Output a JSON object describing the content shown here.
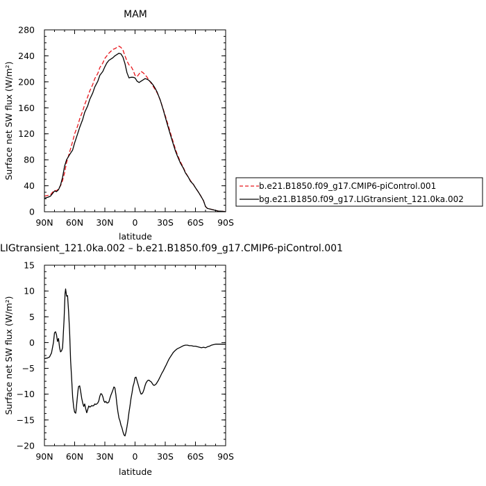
{
  "chart_data": [
    {
      "type": "line",
      "title": "MAM",
      "xlabel": "latitude",
      "ylabel": "Surface net SW flux (W/m²)",
      "x_axis": "latitude, 90N (left) to 90S (right); N positive, S negative",
      "xlim": [
        90,
        -90
      ],
      "xticks": [
        90,
        60,
        30,
        0,
        -30,
        -60,
        -90
      ],
      "xtick_labels": [
        "90N",
        "60N",
        "30N",
        "0",
        "30S",
        "60S",
        "90S"
      ],
      "ylim": [
        0,
        280
      ],
      "yticks": [
        0,
        40,
        80,
        120,
        160,
        200,
        240,
        280
      ],
      "ytick_labels": [
        "0",
        "40",
        "80",
        "120",
        "160",
        "200",
        "240",
        "280"
      ],
      "grid": false,
      "legend": "right, outside",
      "series": [
        {
          "name": "b.e21.B1850.f09_g17.CMIP6-piControl.001",
          "color": "#e8141a",
          "dash": "dashed",
          "x": [
            90,
            87,
            84,
            82,
            80,
            78,
            76,
            74,
            72,
            70,
            68,
            65,
            62,
            60,
            57,
            55,
            52,
            50,
            47,
            45,
            42,
            40,
            37,
            35,
            32,
            30,
            28,
            26,
            24,
            22,
            20,
            18,
            16,
            14,
            12,
            10,
            8,
            6,
            4,
            2,
            0,
            -2,
            -4,
            -6,
            -8,
            -10,
            -12,
            -14,
            -16,
            -18,
            -20,
            -22,
            -25,
            -28,
            -30,
            -32,
            -35,
            -38,
            -40,
            -42,
            -45,
            -48,
            -50,
            -53,
            -55,
            -58,
            -60,
            -63,
            -65,
            -68,
            -70,
            -72,
            -75,
            -78,
            -80,
            -83,
            -85,
            -88,
            -90
          ],
          "y": [
            24,
            25,
            26,
            30,
            33,
            32,
            36,
            40,
            48,
            60,
            76,
            92,
            108,
            120,
            132,
            143,
            155,
            165,
            177,
            186,
            196,
            205,
            213,
            222,
            229,
            236,
            240,
            244,
            247,
            250,
            251,
            253,
            255,
            253,
            249,
            240,
            232,
            226,
            224,
            218,
            210,
            208,
            212,
            216,
            214,
            211,
            207,
            202,
            198,
            193,
            188,
            183,
            172,
            158,
            148,
            138,
            122,
            107,
            97,
            88,
            77,
            68,
            61,
            53,
            48,
            42,
            37,
            30,
            25,
            17,
            8,
            5,
            4,
            3,
            2,
            1,
            1,
            0.5,
            0
          ]
        },
        {
          "name": "bg.e21.B1850.f09_g17.LIGtransient_121.0ka.002",
          "color": "#000000",
          "dash": "solid",
          "x": [
            90,
            87,
            84,
            82,
            80,
            78,
            76,
            74,
            72,
            70,
            68,
            65,
            62,
            60,
            57,
            55,
            52,
            50,
            47,
            45,
            42,
            40,
            37,
            35,
            32,
            30,
            28,
            26,
            24,
            22,
            20,
            18,
            16,
            14,
            12,
            10,
            8,
            6,
            4,
            2,
            0,
            -2,
            -4,
            -6,
            -8,
            -10,
            -12,
            -14,
            -16,
            -18,
            -20,
            -22,
            -25,
            -28,
            -30,
            -32,
            -35,
            -38,
            -40,
            -42,
            -45,
            -48,
            -50,
            -53,
            -55,
            -58,
            -60,
            -63,
            -65,
            -68,
            -70,
            -72,
            -75,
            -78,
            -80,
            -83,
            -85,
            -88,
            -90
          ],
          "y": [
            21,
            22,
            24,
            28,
            32,
            31,
            34,
            41,
            53,
            70,
            80,
            88,
            95,
            106,
            120,
            130,
            142,
            153,
            163,
            173,
            183,
            192,
            201,
            210,
            216,
            223,
            229,
            233,
            235,
            237,
            240,
            242,
            244,
            243,
            238,
            228,
            214,
            206,
            207,
            207,
            206,
            201,
            199,
            201,
            203,
            205,
            204,
            202,
            199,
            195,
            190,
            184,
            172,
            157,
            146,
            135,
            119,
            104,
            94,
            86,
            75,
            67,
            60,
            53,
            47,
            42,
            37,
            30,
            25,
            17,
            8,
            5,
            4,
            3,
            2,
            1,
            1,
            0.5,
            0
          ]
        }
      ]
    },
    {
      "type": "line",
      "title": "LIGtransient_121.0ka.002 – b.e21.B1850.f09_g17.CMIP6-piControl.001",
      "xlabel": "latitude",
      "ylabel": "Surface net SW flux (W/m²)",
      "x_axis": "latitude, 90N (left) to 90S (right); N positive, S negative",
      "xlim": [
        90,
        -90
      ],
      "xticks": [
        90,
        60,
        30,
        0,
        -30,
        -60,
        -90
      ],
      "xtick_labels": [
        "90N",
        "60N",
        "30N",
        "0",
        "30S",
        "60S",
        "90S"
      ],
      "ylim": [
        -20,
        15
      ],
      "yticks": [
        -20,
        -15,
        -10,
        -5,
        0,
        5,
        10,
        15
      ],
      "ytick_labels": [
        "−20",
        "−15",
        "−10",
        "−5",
        "0",
        "5",
        "10",
        "15"
      ],
      "grid": false,
      "series": [
        {
          "color": "#000000",
          "dash": "solid",
          "x": [
            90,
            87,
            85,
            83,
            81,
            80,
            79,
            78,
            77,
            76,
            75,
            74,
            73,
            72,
            71.5,
            71,
            70.5,
            70,
            69.5,
            69,
            68,
            67,
            66,
            65,
            64,
            63,
            62,
            61,
            60,
            59,
            58.5,
            58,
            57.5,
            57,
            56.5,
            56,
            55,
            54,
            53,
            52,
            51,
            50,
            49,
            48,
            47,
            46,
            45,
            44,
            43,
            42,
            41,
            40,
            39,
            38,
            37,
            36,
            35,
            34,
            33,
            32,
            31,
            30,
            29,
            28,
            27,
            26,
            25,
            24,
            23,
            22,
            21,
            20,
            19,
            18,
            17,
            16,
            15,
            14,
            13,
            12,
            11,
            10,
            9,
            8,
            7,
            6,
            5,
            4,
            3,
            2,
            1,
            0,
            -1,
            -2,
            -3,
            -4,
            -5,
            -6,
            -7,
            -8,
            -9,
            -10,
            -11,
            -12,
            -13,
            -14,
            -15,
            -16,
            -17,
            -18,
            -19,
            -20,
            -21,
            -22,
            -23,
            -24,
            -25,
            -26,
            -27,
            -28,
            -29,
            -30,
            -31,
            -32,
            -33,
            -34,
            -35,
            -36,
            -37,
            -38,
            -39,
            -40,
            -42,
            -44,
            -46,
            -48,
            -50,
            -52,
            -54,
            -56,
            -58,
            -60,
            -62,
            -64,
            -66,
            -68,
            -70,
            -72,
            -74,
            -76,
            -78,
            -80,
            -82,
            -84,
            -86,
            -88,
            -90
          ],
          "y": [
            -3.1,
            -3.0,
            -2.8,
            -2.0,
            0.0,
            1.9,
            2.1,
            1.5,
            0.2,
            0.8,
            -1.0,
            -1.8,
            -1.6,
            -1.0,
            0.6,
            2.5,
            4.5,
            7.0,
            9.5,
            10.4,
            9.0,
            9.1,
            6.0,
            2.0,
            -3.5,
            -7.0,
            -10.5,
            -12.5,
            -13.5,
            -13.7,
            -13.0,
            -12.0,
            -11.0,
            -10.0,
            -9.0,
            -8.5,
            -8.4,
            -9.5,
            -10.8,
            -11.7,
            -12.4,
            -11.9,
            -12.8,
            -13.6,
            -13.0,
            -12.3,
            -12.5,
            -12.4,
            -12.2,
            -12.3,
            -12.2,
            -11.9,
            -12.0,
            -11.9,
            -11.7,
            -11.3,
            -10.4,
            -9.9,
            -10.0,
            -10.5,
            -11.3,
            -11.6,
            -11.4,
            -11.7,
            -11.7,
            -11.5,
            -10.8,
            -10.2,
            -9.7,
            -9.2,
            -8.6,
            -8.8,
            -10.1,
            -12.0,
            -13.4,
            -14.6,
            -15.2,
            -16.0,
            -16.5,
            -17.3,
            -17.9,
            -18.1,
            -17.4,
            -16.3,
            -15.0,
            -13.5,
            -12.2,
            -10.8,
            -9.7,
            -8.5,
            -7.8,
            -6.8,
            -6.7,
            -7.4,
            -8.1,
            -8.8,
            -9.5,
            -10.0,
            -9.9,
            -9.6,
            -9.0,
            -8.3,
            -7.8,
            -7.5,
            -7.3,
            -7.3,
            -7.5,
            -7.6,
            -7.9,
            -8.2,
            -8.3,
            -8.2,
            -8.0,
            -7.7,
            -7.4,
            -7.0,
            -6.6,
            -6.2,
            -5.8,
            -5.5,
            -5.1,
            -4.7,
            -4.3,
            -3.9,
            -3.5,
            -3.1,
            -2.8,
            -2.5,
            -2.2,
            -1.9,
            -1.7,
            -1.5,
            -1.2,
            -1.0,
            -0.8,
            -0.6,
            -0.5,
            -0.5,
            -0.6,
            -0.6,
            -0.7,
            -0.7,
            -0.8,
            -0.9,
            -1.0,
            -0.9,
            -1.0,
            -0.8,
            -0.7,
            -0.5,
            -0.4,
            -0.3,
            -0.3,
            -0.3,
            -0.3,
            -0.3,
            -0.3
          ]
        }
      ]
    }
  ]
}
